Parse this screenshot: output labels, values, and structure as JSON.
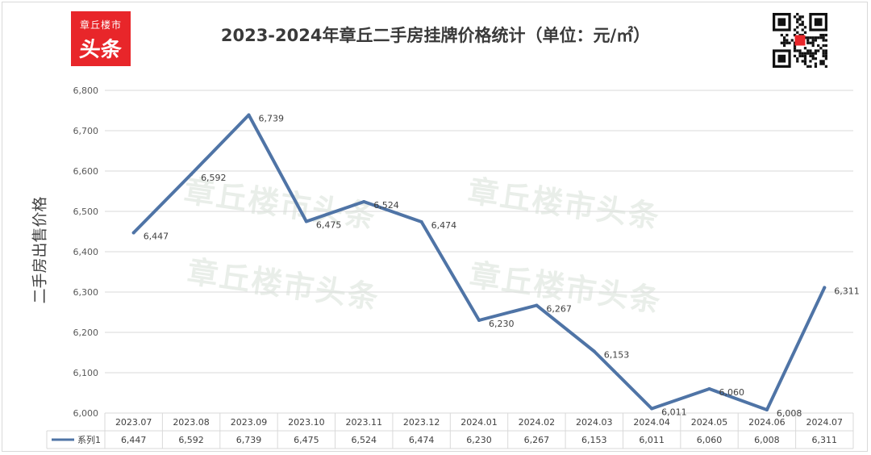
{
  "logo": {
    "line1": "章丘楼市",
    "line2": "头条"
  },
  "header": {
    "title": "2023-2024年章丘二手房挂牌价格统计（单位：元/㎡）"
  },
  "watermark": "章丘楼市头条",
  "chart_data": {
    "type": "line",
    "title": "2023-2024年章丘二手房挂牌价格统计（单位：元/㎡）",
    "ylabel": "二手房出售价格",
    "xlabel": "",
    "categories": [
      "2023.07",
      "2023.08",
      "2023.09",
      "2023.10",
      "2023.11",
      "2023.12",
      "2024.01",
      "2024.02",
      "2024.03",
      "2024.04",
      "2024.05",
      "2024.06",
      "2024.07"
    ],
    "series": [
      {
        "name": "系列1",
        "values": [
          6447,
          6592,
          6739,
          6475,
          6524,
          6474,
          6230,
          6267,
          6153,
          6011,
          6060,
          6008,
          6311
        ],
        "color": "#4f74a6"
      }
    ],
    "ylim": [
      6000,
      6800
    ],
    "yticks": [
      6000,
      6100,
      6200,
      6300,
      6400,
      6500,
      6600,
      6700,
      6800
    ],
    "value_labels": [
      "6,447",
      "6,592",
      "6,739",
      "6,475",
      "6,524",
      "6,474",
      "6,230",
      "6,267",
      "6,153",
      "6,011",
      "6,060",
      "6,008",
      "6,311"
    ],
    "ytick_labels": [
      "6,000",
      "6,100",
      "6,200",
      "6,300",
      "6,400",
      "6,500",
      "6,600",
      "6,700",
      "6,800"
    ],
    "grid": true,
    "legend": "data-table-left",
    "grid_color": "#d9d9d9"
  }
}
